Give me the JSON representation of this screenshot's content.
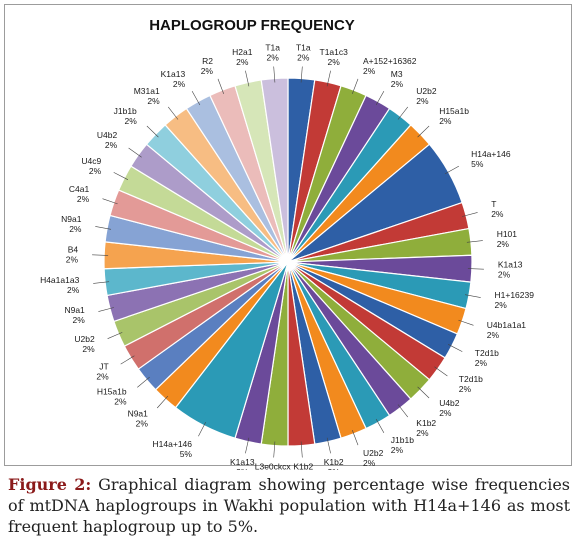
{
  "chart_data": {
    "type": "pie",
    "title": "HAPLOGROUP FREQUENCY",
    "slices": [
      {
        "label": "T1a",
        "value": 2,
        "value_label": "2%",
        "color": "#2e5fa6"
      },
      {
        "label": "T1a1c3",
        "value": 2,
        "value_label": "2%",
        "color": "#c23a36"
      },
      {
        "label": "A+152+16362",
        "value": 2,
        "value_label": "2%",
        "color": "#8fae3b"
      },
      {
        "label": "M3",
        "value": 2,
        "value_label": "2%",
        "color": "#6b4a9a"
      },
      {
        "label": "U2b2",
        "value": 2,
        "value_label": "2%",
        "color": "#2b9ab6"
      },
      {
        "label": "H15a1b",
        "value": 2,
        "value_label": "2%",
        "color": "#f28a1e"
      },
      {
        "label": "H14a+146",
        "value": 5,
        "value_label": "5%",
        "color": "#2e5fa6"
      },
      {
        "label": "T",
        "value": 2,
        "value_label": "2%",
        "color": "#c23a36"
      },
      {
        "label": "H101",
        "value": 2,
        "value_label": "2%",
        "color": "#8fae3b"
      },
      {
        "label": "K1a13",
        "value": 2,
        "value_label": "2%",
        "color": "#6b4a9a"
      },
      {
        "label": "H1+16239",
        "value": 2,
        "value_label": "2%",
        "color": "#2b9ab6"
      },
      {
        "label": "U4b1a1a1",
        "value": 2,
        "value_label": "2%",
        "color": "#f28a1e"
      },
      {
        "label": "T2d1b",
        "value": 2,
        "value_label": "2%",
        "color": "#2e5fa6"
      },
      {
        "label": "T2d1b",
        "value": 2,
        "value_label": "2%",
        "color": "#c23a36"
      },
      {
        "label": "U4b2",
        "value": 2,
        "value_label": "2%",
        "color": "#8fae3b"
      },
      {
        "label": "K1b2",
        "value": 2,
        "value_label": "2%",
        "color": "#6b4a9a"
      },
      {
        "label": "J1b1b",
        "value": 2,
        "value_label": "2%",
        "color": "#2b9ab6"
      },
      {
        "label": "U2b2",
        "value": 2,
        "value_label": "2%",
        "color": "#f28a1e"
      },
      {
        "label": "K1b2",
        "value": 2,
        "value_label": "2%",
        "color": "#2e5fa6"
      },
      {
        "label": "K1b2",
        "value": 2,
        "value_label": "2%",
        "color": "#c23a36"
      },
      {
        "label": "L3e0ckcx",
        "value": 2,
        "value_label": "2%",
        "color": "#8fae3b"
      },
      {
        "label": "K1a13",
        "value": 2,
        "value_label": "2%",
        "color": "#6b4a9a"
      },
      {
        "label": "H14a+146",
        "value": 5,
        "value_label": "5%",
        "color": "#2b9ab6"
      },
      {
        "label": "N9a1",
        "value": 2,
        "value_label": "2%",
        "color": "#f28a1e"
      },
      {
        "label": "H15a1b",
        "value": 2,
        "value_label": "2%",
        "color": "#5a7fc0"
      },
      {
        "label": "JT",
        "value": 2,
        "value_label": "2%",
        "color": "#d0706c"
      },
      {
        "label": "U2b2",
        "value": 2,
        "value_label": "2%",
        "color": "#a9c46a"
      },
      {
        "label": "N9a1",
        "value": 2,
        "value_label": "2%",
        "color": "#8c72b3"
      },
      {
        "label": "H4a1a1a3",
        "value": 2,
        "value_label": "2%",
        "color": "#5cb7cc"
      },
      {
        "label": "B4",
        "value": 2,
        "value_label": "2%",
        "color": "#f5a34f"
      },
      {
        "label": "N9a1",
        "value": 2,
        "value_label": "2%",
        "color": "#86a3d4"
      },
      {
        "label": "C4a1",
        "value": 2,
        "value_label": "2%",
        "color": "#e39a97"
      },
      {
        "label": "U4c9",
        "value": 2,
        "value_label": "2%",
        "color": "#c4da97"
      },
      {
        "label": "U4b2",
        "value": 2,
        "value_label": "2%",
        "color": "#ad9cc9"
      },
      {
        "label": "J1b1b",
        "value": 2,
        "value_label": "2%",
        "color": "#8fcfde"
      },
      {
        "label": "M31a1",
        "value": 2,
        "value_label": "2%",
        "color": "#f7bd83"
      },
      {
        "label": "K1a13",
        "value": 2,
        "value_label": "2%",
        "color": "#aabfe0"
      },
      {
        "label": "R2",
        "value": 2,
        "value_label": "2%",
        "color": "#ebbcba"
      },
      {
        "label": "H2a1",
        "value": 2,
        "value_label": "2%",
        "color": "#d6e6b8"
      },
      {
        "label": "T1a",
        "value": 2,
        "value_label": "2%",
        "color": "#cbbfdd"
      }
    ]
  },
  "caption": {
    "label": "Figure 2:",
    "text": " Graphical diagram showing percentage wise frequencies of mtDNA haplogroups in Wakhi population with H14a+146 as most frequent haplogroup up to 5%."
  }
}
